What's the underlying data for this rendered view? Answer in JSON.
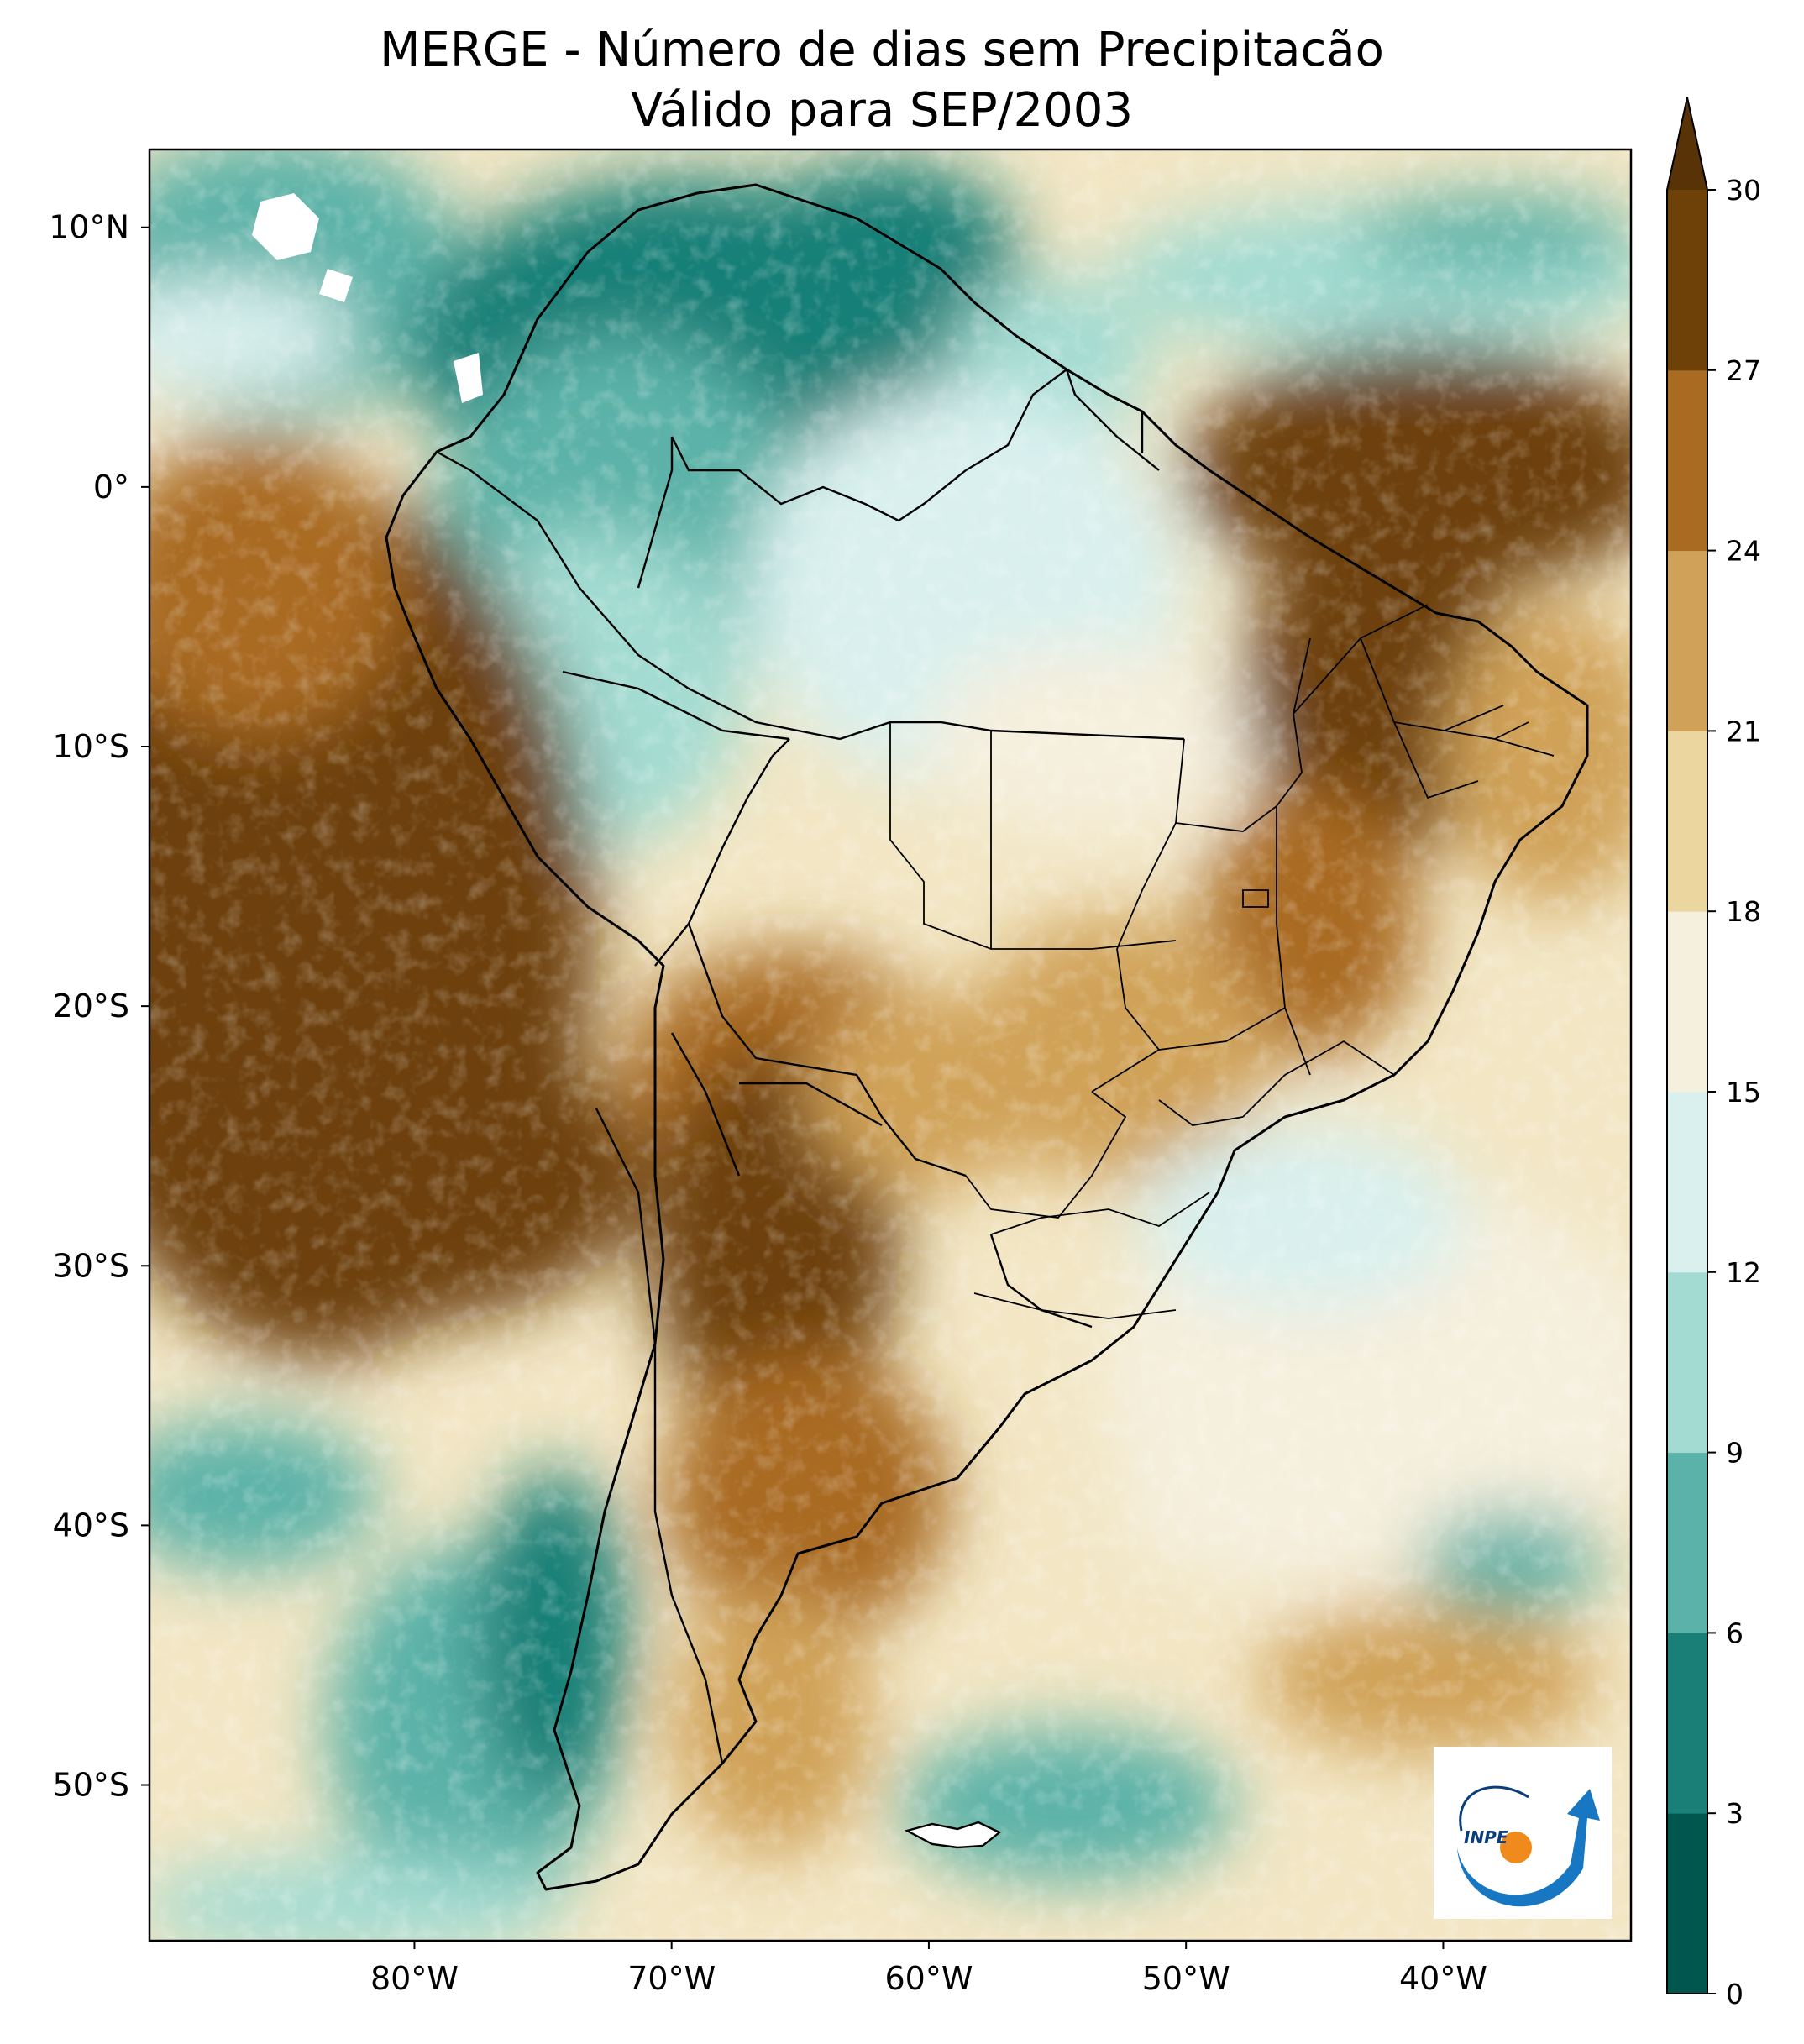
{
  "title": {
    "line1": "MERGE - Número de dias sem Precipitacão",
    "line2": "Válido para SEP/2003"
  },
  "axes": {
    "lon_ticks": [
      "80°W",
      "70°W",
      "60°W",
      "50°W",
      "40°W"
    ],
    "lat_ticks": [
      "10°N",
      "0°",
      "10°S",
      "20°S",
      "30°S",
      "40°S",
      "50°S"
    ],
    "lon_values": [
      -80,
      -70,
      -60,
      -50,
      -40
    ],
    "lat_values": [
      10,
      0,
      -10,
      -20,
      -30,
      -40,
      -50
    ],
    "lon_range": [
      -90.3,
      -32.7
    ],
    "lat_range": [
      -56.0,
      13.0
    ]
  },
  "colorbar": {
    "ticks": [
      "0",
      "3",
      "6",
      "9",
      "12",
      "15",
      "18",
      "21",
      "24",
      "27",
      "30"
    ],
    "levels": [
      0,
      3,
      6,
      9,
      12,
      15,
      18,
      21,
      24,
      27,
      30
    ],
    "colors": [
      "#01564e",
      "#197f77",
      "#5bb2a8",
      "#a3dbd2",
      "#d9f0ee",
      "#f5efdd",
      "#ecd69f",
      "#d0a259",
      "#a96a21",
      "#6d4108"
    ],
    "extend_color": "#583307",
    "extend": "max"
  },
  "logo": {
    "text": "INPE"
  },
  "chart_data": {
    "type": "heatmap",
    "title": "MERGE - Número de dias sem Precipitacão — Válido para SEP/2003",
    "variable": "Número de dias sem Precipitacão",
    "units": "dias",
    "period": "SEP/2003",
    "xlabel": "",
    "ylabel": "",
    "xlim": [
      -90.3,
      -32.7
    ],
    "ylim": [
      -56.0,
      13.0
    ],
    "colorbar_levels": [
      0,
      3,
      6,
      9,
      12,
      15,
      18,
      21,
      24,
      27,
      30
    ]
  }
}
